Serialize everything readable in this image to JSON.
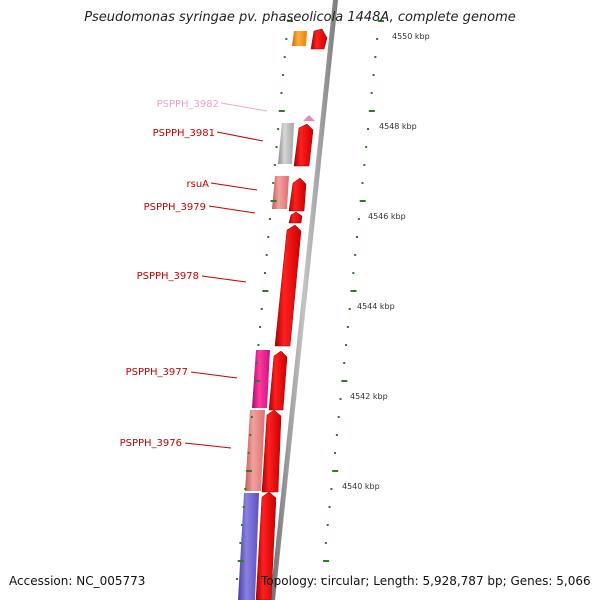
{
  "title": "Pseudomonas syringae pv. phaseolicola 1448A, complete genome",
  "footer": {
    "accession": "Accession: NC_005773",
    "topology": "Topology: circular; Length: 5,928,787 bp; Genes: 5,066"
  },
  "axis": {
    "unit": "kbp",
    "tick_labels": [
      "4550 kbp",
      "4548 kbp",
      "4546 kbp",
      "4544 kbp",
      "4542 kbp",
      "4540 kbp"
    ]
  },
  "genes": [
    {
      "name": "PSPPH_3982",
      "color": "#ee99cc"
    },
    {
      "name": "PSPPH_3981",
      "color": "#cc0000"
    },
    {
      "name": "rsuA",
      "color": "#cc0000"
    },
    {
      "name": "PSPPH_3979",
      "color": "#cc0000"
    },
    {
      "name": "PSPPH_3978",
      "color": "#cc0000"
    },
    {
      "name": "PSPPH_3977",
      "color": "#cc0000"
    },
    {
      "name": "PSPPH_3976",
      "color": "#cc0000"
    }
  ],
  "colors": {
    "gene_red": "#ee0000",
    "tick_green": "#2e7d1e",
    "backbone": "#8a8a8a",
    "orange": "#f08c00",
    "gray_feature": "#b8b8b8",
    "salmon": "#ee8080",
    "magenta": "#ee1b8c",
    "blue": "#6a5acd",
    "pink": "#e07ab8"
  }
}
